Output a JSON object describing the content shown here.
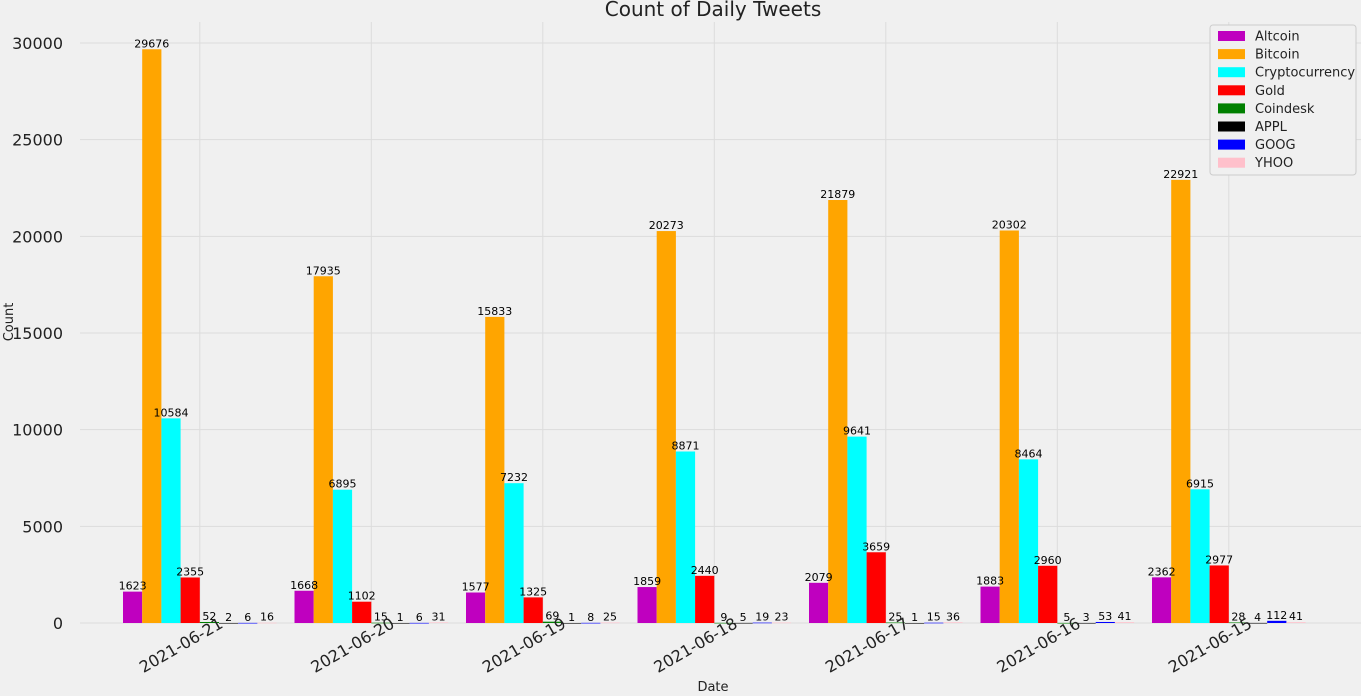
{
  "chart_data": {
    "type": "bar",
    "title": "Count of Daily Tweets",
    "xlabel": "Date",
    "ylabel": "Count",
    "ylim": [
      0,
      31500
    ],
    "yticks": [
      0,
      5000,
      10000,
      15000,
      20000,
      25000,
      30000
    ],
    "grid": true,
    "legend_position": "top-right",
    "categories": [
      "2021-06-21",
      "2021-06-20",
      "2021-06-19",
      "2021-06-18",
      "2021-06-17",
      "2021-06-16",
      "2021-06-15"
    ],
    "series": [
      {
        "name": "Altcoin",
        "color": "#bf00bf",
        "values": [
          1623,
          1668,
          1577,
          1859,
          2079,
          1883,
          2362
        ]
      },
      {
        "name": "Bitcoin",
        "color": "#ffa500",
        "values": [
          29676,
          17935,
          15833,
          20273,
          21879,
          20302,
          22921
        ]
      },
      {
        "name": "Cryptocurrency",
        "color": "#00ffff",
        "values": [
          10584,
          6895,
          7232,
          8871,
          9641,
          8464,
          6915
        ]
      },
      {
        "name": "Gold",
        "color": "#ff0000",
        "values": [
          2355,
          1102,
          1325,
          2440,
          3659,
          2960,
          2977
        ]
      },
      {
        "name": "Coindesk",
        "color": "#008000",
        "values": [
          52,
          15,
          69,
          9,
          25,
          5,
          28
        ]
      },
      {
        "name": "APPL",
        "color": "#000000",
        "values": [
          2,
          1,
          1,
          5,
          1,
          3,
          4
        ]
      },
      {
        "name": "GOOG",
        "color": "#0000ff",
        "values": [
          6,
          6,
          8,
          19,
          15,
          53,
          112
        ]
      },
      {
        "name": "YHOO",
        "color": "#ffc0cb",
        "values": [
          16,
          31,
          25,
          23,
          36,
          41,
          41
        ]
      }
    ]
  }
}
